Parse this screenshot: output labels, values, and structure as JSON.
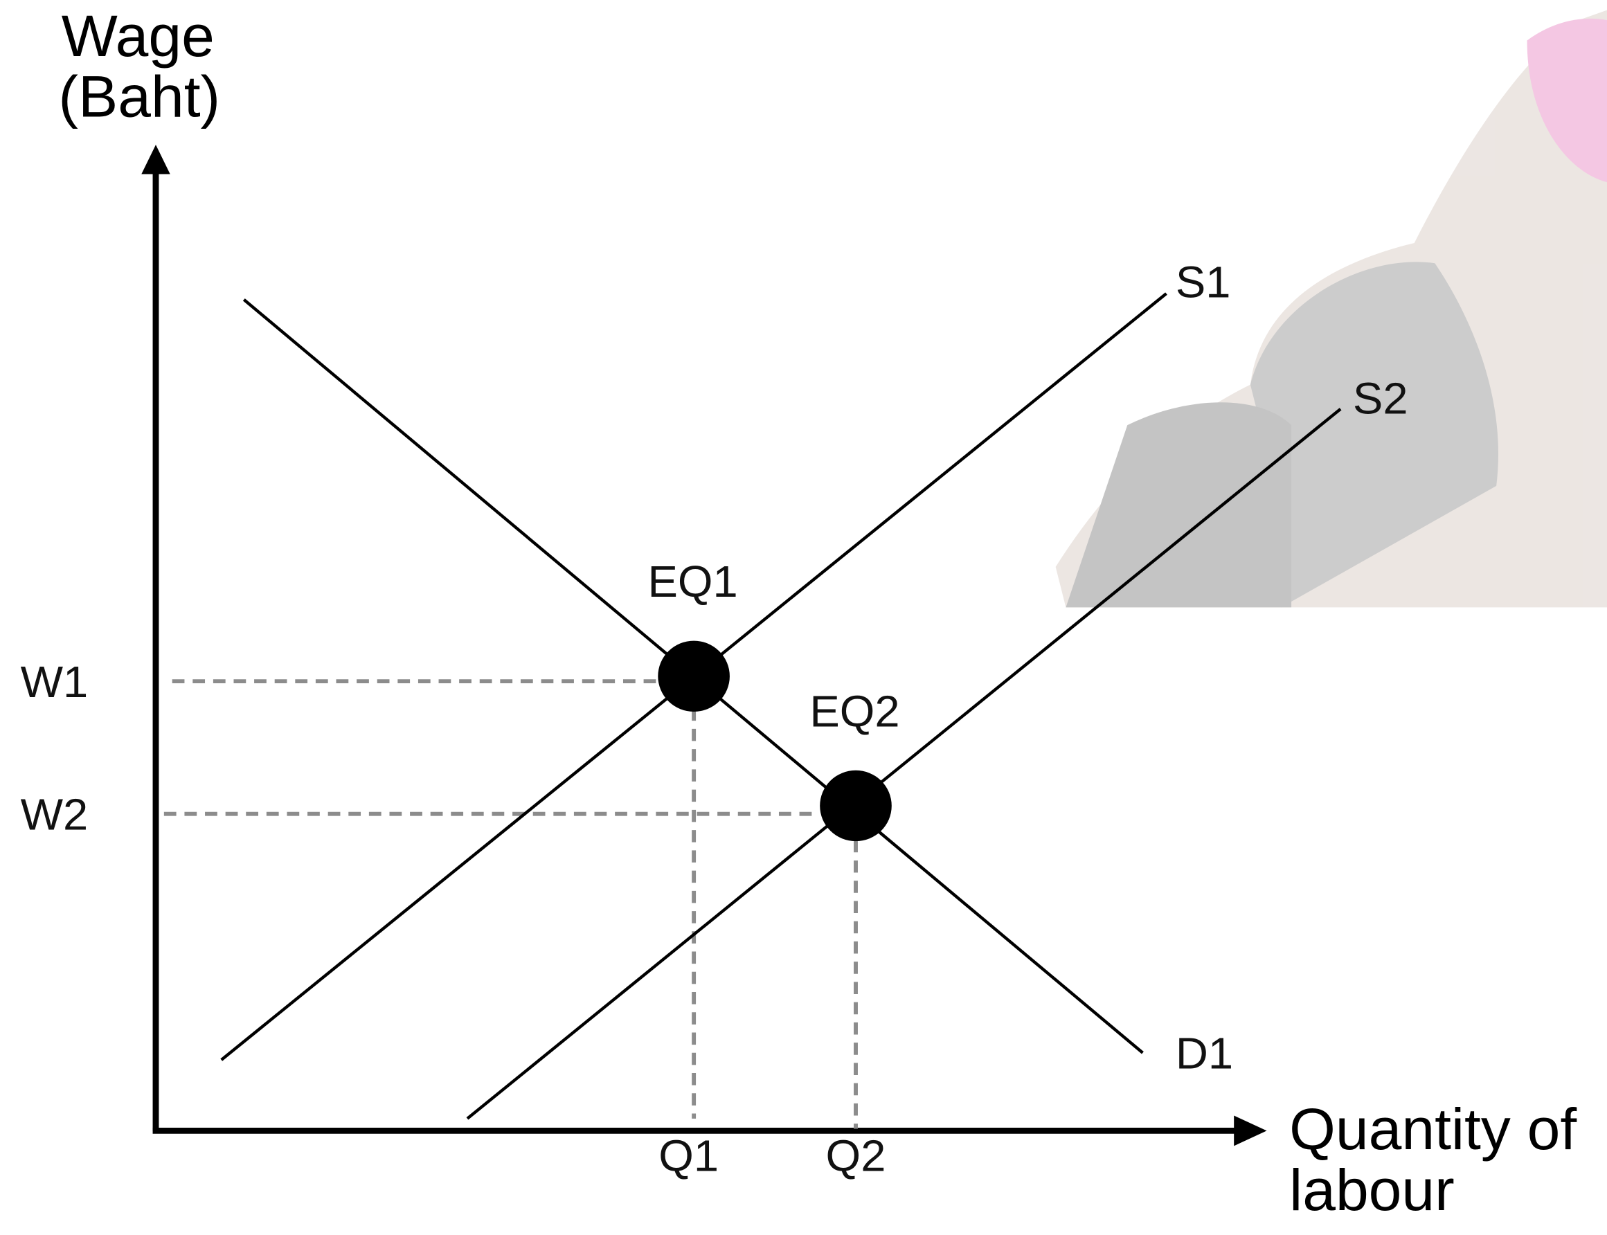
{
  "y_axis": {
    "title_lines": [
      "Wage",
      "(Baht)"
    ]
  },
  "x_axis": {
    "title_lines": [
      "Quantity of",
      "labour"
    ]
  },
  "curves": {
    "supply_1": "S1",
    "supply_2": "S2",
    "demand_1": "D1"
  },
  "equilibria": [
    "EQ1",
    "EQ2"
  ],
  "wage_levels": [
    "W1",
    "W2"
  ],
  "quantities": [
    "Q1",
    "Q2"
  ]
}
